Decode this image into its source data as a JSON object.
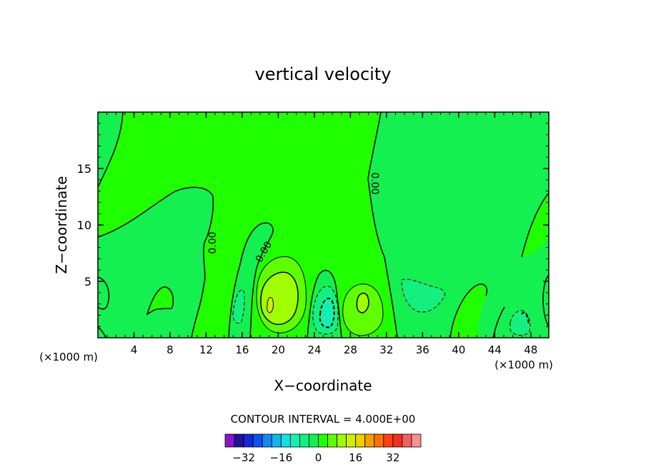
{
  "chart_data": {
    "type": "heatmap",
    "title": "vertical velocity",
    "xlabel": "X−coordinate",
    "ylabel": "Z−coordinate",
    "x_scale_note_left": "(×1000 m)",
    "x_scale_note_right": "(×1000 m)",
    "xlim": [
      0,
      50
    ],
    "ylim": [
      0,
      20
    ],
    "x_ticks": [
      "4",
      "8",
      "12",
      "16",
      "20",
      "24",
      "28",
      "32",
      "36",
      "40",
      "44",
      "48"
    ],
    "y_ticks": [
      "5",
      "10",
      "15"
    ],
    "contour_interval_text": "CONTOUR INTERVAL = 4.000E+00",
    "contour_labels": [
      "0.00",
      "0.00",
      "0.00"
    ],
    "colorbar": {
      "colors": [
        "#8a14c8",
        "#2010a0",
        "#1428d8",
        "#1050f0",
        "#1488f0",
        "#14b4f0",
        "#14e0e0",
        "#14f0b4",
        "#14f080",
        "#14f050",
        "#20ff00",
        "#60ff00",
        "#a0ff00",
        "#d0f000",
        "#f0d000",
        "#f0a000",
        "#ff7000",
        "#ff4010",
        "#f03020",
        "#f06060",
        "#f89090"
      ],
      "tick_labels": [
        "−32",
        "−16",
        "0",
        "16",
        "32"
      ],
      "tick_values": [
        -32,
        -16,
        0,
        16,
        32
      ]
    },
    "colors": {
      "background_green": "#20ff00",
      "negative_region": "#14f050",
      "weak_negative": "#14f080",
      "strong_negative": "#14f0b4",
      "positive_region": "#60ff00",
      "strong_positive": "#a0ff00",
      "peak_positive": "#d0f000"
    }
  }
}
